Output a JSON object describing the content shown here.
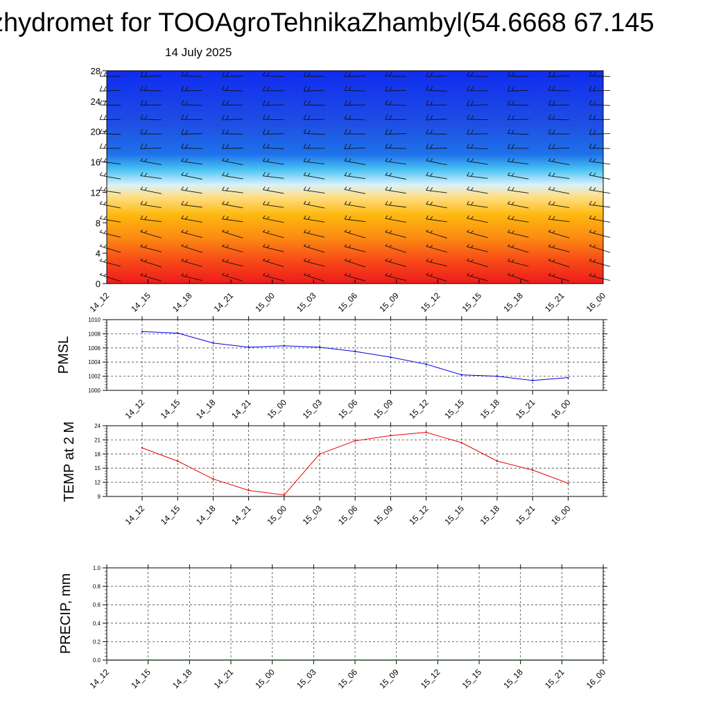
{
  "title": "zhydromet for TOOAgroTehnikaZhambyl(54.6668 67.145",
  "subtitle": "14 July 2025",
  "chart_data": [
    {
      "type": "heatmap",
      "name": "vertical cross-section with wind barbs",
      "x_ticks": [
        "14_12",
        "14_15",
        "14_18",
        "14_21",
        "15_00",
        "15_03",
        "15_06",
        "15_09",
        "15_12",
        "15_15",
        "15_18",
        "15_21",
        "16_00"
      ],
      "y_ticks": [
        0,
        4,
        8,
        12,
        16,
        20,
        24,
        28
      ],
      "ylim": [
        0,
        28
      ],
      "color_by_level": [
        {
          "level": 0,
          "color": "#ee1b1b"
        },
        {
          "level": 3,
          "color": "#f74a18"
        },
        {
          "level": 6,
          "color": "#fb8a12"
        },
        {
          "level": 9,
          "color": "#fdb80e"
        },
        {
          "level": 11.5,
          "color": "#fee08a"
        },
        {
          "level": 13,
          "color": "#d9f1fb"
        },
        {
          "level": 15,
          "color": "#49c3f3"
        },
        {
          "level": 17,
          "color": "#1e72ea"
        },
        {
          "level": 21,
          "color": "#1f4fe3"
        },
        {
          "level": 28,
          "color": "#0f2cf0"
        }
      ]
    },
    {
      "type": "line",
      "ylabel": "PMSL",
      "x_ticks": [
        "14_12",
        "14_15",
        "14_18",
        "14_21",
        "15_00",
        "15_03",
        "15_06",
        "15_09",
        "15_12",
        "15_15",
        "15_18",
        "15_21",
        "16_00"
      ],
      "y_ticks": [
        1000,
        1002,
        1004,
        1006,
        1008,
        1010
      ],
      "ylim": [
        1000,
        1010
      ],
      "grid": true,
      "color": "#0000e0",
      "values": [
        1008.3,
        1008.1,
        1006.7,
        1006.1,
        1006.3,
        1006.1,
        1005.5,
        1004.7,
        1003.7,
        1002.2,
        1002.0,
        1001.4,
        1001.8
      ]
    },
    {
      "type": "line",
      "ylabel": "TEMP at 2 M",
      "x_ticks": [
        "14_12",
        "14_15",
        "14_18",
        "14_21",
        "15_00",
        "15_03",
        "15_06",
        "15_09",
        "15_12",
        "15_15",
        "15_18",
        "15_21",
        "16_00"
      ],
      "y_ticks": [
        9,
        12,
        15,
        18,
        21,
        24
      ],
      "ylim": [
        9,
        24
      ],
      "grid": true,
      "color": "#ee0000",
      "values": [
        19.3,
        16.5,
        12.7,
        10.3,
        9.3,
        18.0,
        20.8,
        21.9,
        22.6,
        20.4,
        16.5,
        14.6,
        11.8
      ]
    },
    {
      "type": "line",
      "ylabel": "PRECIP, mm",
      "x_ticks": [
        "14_12",
        "14_15",
        "14_18",
        "14_21",
        "15_00",
        "15_03",
        "15_06",
        "15_09",
        "15_12",
        "15_15",
        "15_18",
        "15_21",
        "16_00"
      ],
      "y_ticks": [
        "0.0",
        "0.2",
        "0.4",
        "0.6",
        "0.8",
        "1.0"
      ],
      "ylim": [
        0,
        1
      ],
      "grid": true,
      "color": "#008800",
      "values": [
        0,
        0,
        0,
        0,
        0,
        0,
        0,
        0,
        0,
        0,
        0,
        0,
        0
      ]
    }
  ]
}
